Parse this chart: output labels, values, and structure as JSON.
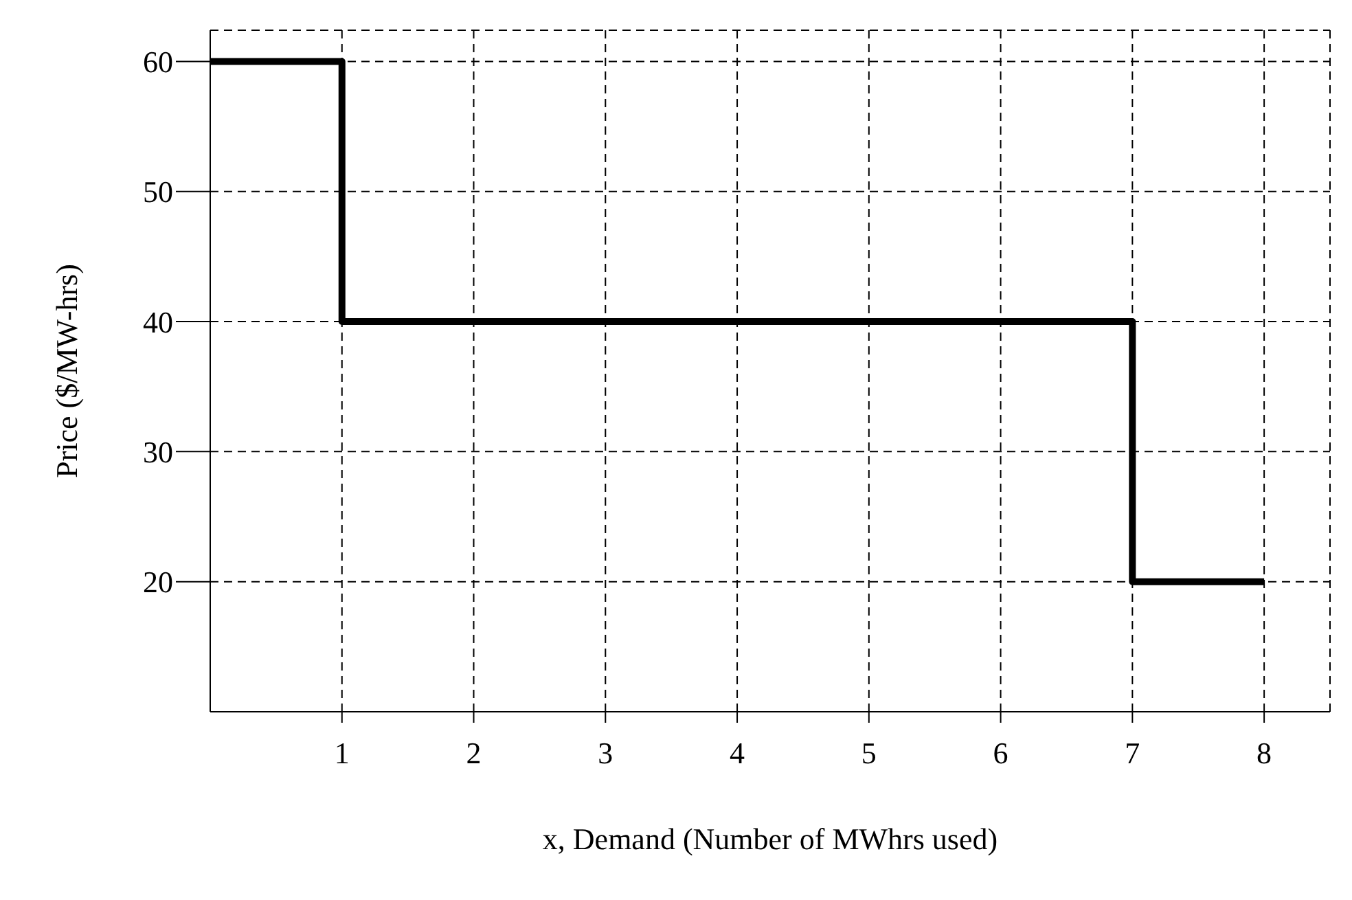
{
  "chart_data": {
    "type": "step",
    "xlabel": "x, Demand (Number of MWhrs used)",
    "ylabel": "Price ($/MW-hrs)",
    "x": [
      0,
      1,
      7,
      8
    ],
    "series": [
      {
        "color": "#000000",
        "values": [
          60,
          40,
          20,
          20
        ]
      }
    ],
    "xlim": [
      0,
      8.5
    ],
    "xticks": [
      1,
      2,
      3,
      4,
      5,
      6,
      7,
      8
    ],
    "ylim": [
      10,
      62.4
    ],
    "yticks": [
      20,
      30,
      40,
      50,
      60
    ],
    "grid": true,
    "marker": "none",
    "line_style": "solid"
  }
}
